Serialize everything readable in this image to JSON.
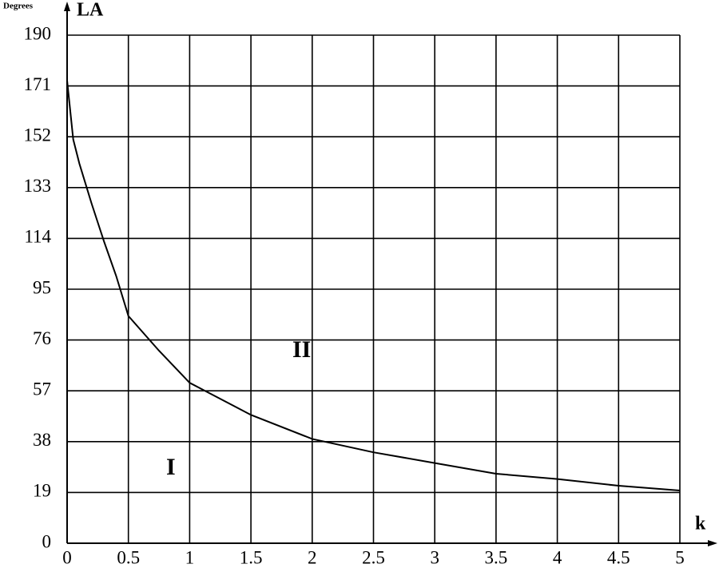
{
  "chart_data": {
    "type": "line",
    "y_unit_label": "Degrees",
    "ylabel": "LA",
    "xlabel": "k",
    "annotations": [
      "I",
      "II"
    ],
    "x": [
      0,
      0.05,
      0.1,
      0.2,
      0.3,
      0.4,
      0.5,
      0.75,
      1,
      1.5,
      2,
      2.5,
      3,
      3.5,
      4,
      4.5,
      5
    ],
    "series": [
      {
        "name": "LA",
        "color": "#000000",
        "values": [
          173,
          151,
          142,
          127,
          113,
          100,
          85,
          72,
          60,
          48,
          39,
          34,
          30,
          26,
          24,
          21.5,
          19.7
        ]
      }
    ],
    "xlim": [
      0,
      5
    ],
    "xticks": [
      0,
      0.5,
      1,
      1.5,
      2,
      2.5,
      3,
      3.5,
      4,
      4.5,
      5
    ],
    "ylim": [
      0,
      190
    ],
    "yticks": [
      0,
      19,
      38,
      57,
      76,
      95,
      114,
      133,
      152,
      171,
      190
    ],
    "grid": true
  }
}
